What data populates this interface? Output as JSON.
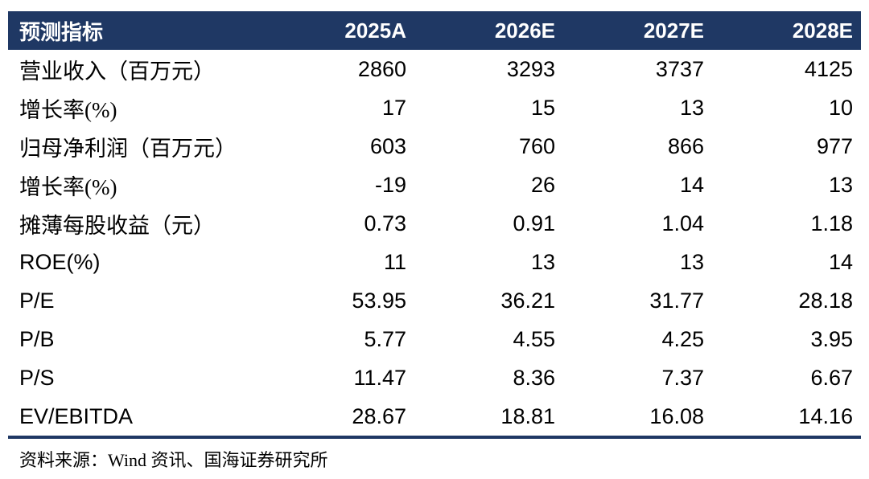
{
  "chart_data": {
    "type": "table",
    "title": "",
    "columns": [
      "预测指标",
      "2025A",
      "2026E",
      "2027E",
      "2028E"
    ],
    "rows": [
      {
        "label": "营业收入（百万元）",
        "values": [
          "2860",
          "3293",
          "3737",
          "4125"
        ]
      },
      {
        "label": "增长率(%)",
        "values": [
          "17",
          "15",
          "13",
          "10"
        ]
      },
      {
        "label": "归母净利润（百万元）",
        "values": [
          "603",
          "760",
          "866",
          "977"
        ]
      },
      {
        "label": "增长率(%)",
        "values": [
          "-19",
          "26",
          "14",
          "13"
        ]
      },
      {
        "label": "摊薄每股收益（元）",
        "values": [
          "0.73",
          "0.91",
          "1.04",
          "1.18"
        ]
      },
      {
        "label": "ROE(%)",
        "values": [
          "11",
          "13",
          "13",
          "14"
        ]
      },
      {
        "label": "P/E",
        "values": [
          "53.95",
          "36.21",
          "31.77",
          "28.18"
        ]
      },
      {
        "label": "P/B",
        "values": [
          "5.77",
          "4.55",
          "4.25",
          "3.95"
        ]
      },
      {
        "label": "P/S",
        "values": [
          "11.47",
          "8.36",
          "7.37",
          "6.67"
        ]
      },
      {
        "label": "EV/EBITDA",
        "values": [
          "28.67",
          "18.81",
          "16.08",
          "14.16"
        ]
      }
    ]
  },
  "source_note": "资料来源：Wind 资讯、国海证券研究所",
  "colors": {
    "header_bg": "#1f3864",
    "header_text": "#ffffff",
    "body_text": "#000000",
    "bottom_rule": "#1f3864"
  }
}
